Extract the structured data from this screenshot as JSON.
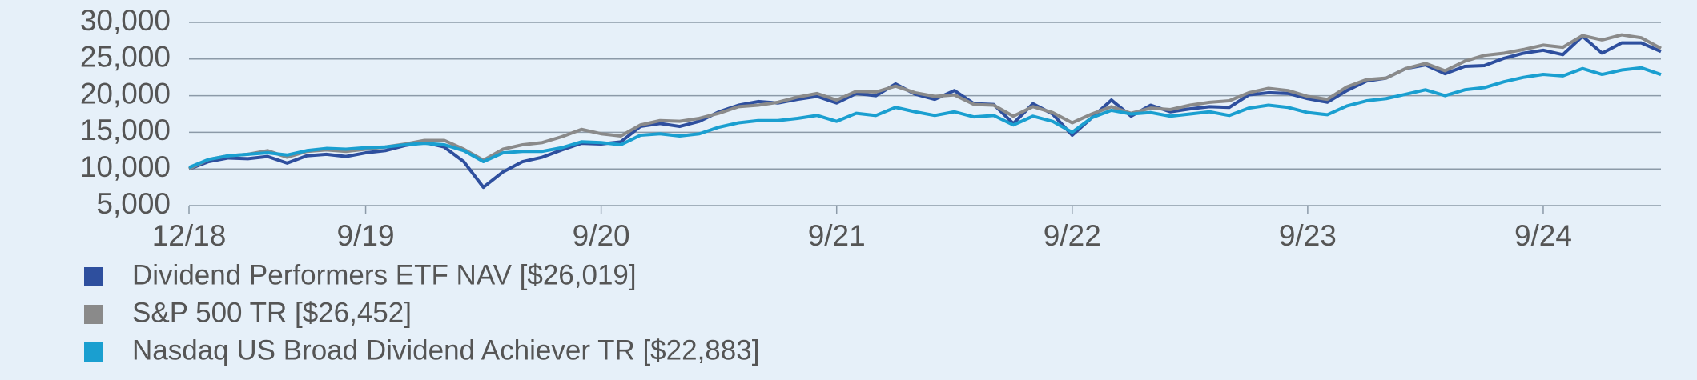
{
  "chart_data": {
    "type": "line",
    "categories": [
      "12/18",
      null,
      null,
      null,
      null,
      null,
      null,
      null,
      null,
      "9/19",
      null,
      null,
      null,
      null,
      null,
      null,
      null,
      null,
      null,
      null,
      null,
      "9/20",
      null,
      null,
      null,
      null,
      null,
      null,
      null,
      null,
      null,
      null,
      null,
      "9/21",
      null,
      null,
      null,
      null,
      null,
      null,
      null,
      null,
      null,
      null,
      null,
      "9/22",
      null,
      null,
      null,
      null,
      null,
      null,
      null,
      null,
      null,
      null,
      null,
      "9/23",
      null,
      null,
      null,
      null,
      null,
      null,
      null,
      null,
      null,
      null,
      null,
      "9/24",
      null,
      null,
      null,
      null,
      null,
      null
    ],
    "series": [
      {
        "name": "Dividend Performers ETF NAV [$26,019]",
        "color": "#2e4f9e",
        "values": [
          10000,
          11000,
          11500,
          11400,
          11700,
          10800,
          11800,
          12000,
          11700,
          12200,
          12500,
          13200,
          13600,
          13000,
          11000,
          7500,
          9600,
          11000,
          11600,
          12600,
          13500,
          13400,
          13700,
          15800,
          16200,
          15800,
          16500,
          17800,
          18700,
          19200,
          19000,
          19500,
          19900,
          19000,
          20300,
          20000,
          21600,
          20200,
          19500,
          20700,
          18900,
          18800,
          16200,
          18900,
          17500,
          14600,
          17000,
          19400,
          17200,
          18700,
          17800,
          18200,
          18500,
          18400,
          20100,
          20400,
          20300,
          19600,
          19100,
          20700,
          22000,
          22400,
          23700,
          24200,
          23000,
          24000,
          24100,
          25100,
          25800,
          26200,
          25600,
          28100,
          25800,
          27200,
          27200,
          26019
        ]
      },
      {
        "name": "S&P 500 TR [$26,452]",
        "color": "#8a8a8a",
        "values": [
          10000,
          11300,
          11800,
          12000,
          12500,
          11600,
          12400,
          12600,
          12400,
          12700,
          13000,
          13400,
          13900,
          13900,
          12700,
          11200,
          12700,
          13300,
          13600,
          14400,
          15400,
          14800,
          14500,
          16000,
          16600,
          16500,
          16900,
          17600,
          18500,
          18700,
          19100,
          19800,
          20300,
          19400,
          20600,
          20500,
          21300,
          20400,
          19900,
          20100,
          18800,
          18700,
          17200,
          18500,
          17700,
          16300,
          17500,
          18500,
          17600,
          18300,
          18100,
          18700,
          19100,
          19300,
          20400,
          21000,
          20700,
          19900,
          19500,
          21200,
          22200,
          22400,
          23700,
          24400,
          23400,
          24700,
          25500,
          25800,
          26300,
          26900,
          26600,
          28200,
          27600,
          28300,
          27900,
          26452
        ]
      },
      {
        "name": "Nasdaq US Broad Dividend Achiever TR [$22,883]",
        "color": "#1a9fd0",
        "values": [
          10200,
          11300,
          11800,
          12000,
          12200,
          11900,
          12500,
          12800,
          12700,
          12900,
          13000,
          13300,
          13500,
          13300,
          12500,
          11000,
          12200,
          12400,
          12400,
          12900,
          13700,
          13600,
          13300,
          14600,
          14800,
          14500,
          14800,
          15700,
          16300,
          16600,
          16600,
          16900,
          17300,
          16500,
          17600,
          17300,
          18400,
          17800,
          17300,
          17800,
          17100,
          17300,
          16000,
          17200,
          16500,
          15000,
          17000,
          18000,
          17500,
          17700,
          17200,
          17500,
          17800,
          17300,
          18300,
          18700,
          18400,
          17700,
          17400,
          18600,
          19300,
          19600,
          20200,
          20800,
          20000,
          20800,
          21100,
          21900,
          22500,
          22900,
          22700,
          23700,
          22900,
          23500,
          23800,
          22883
        ]
      }
    ],
    "ylim": [
      5000,
      30000
    ],
    "yticks": [
      {
        "value": 5000,
        "label": "5,000"
      },
      {
        "value": 10000,
        "label": "10,000"
      },
      {
        "value": 15000,
        "label": "15,000"
      },
      {
        "value": 20000,
        "label": "20,000"
      },
      {
        "value": 25000,
        "label": "25,000"
      },
      {
        "value": 30000,
        "label": "30,000"
      }
    ],
    "grid": true
  }
}
